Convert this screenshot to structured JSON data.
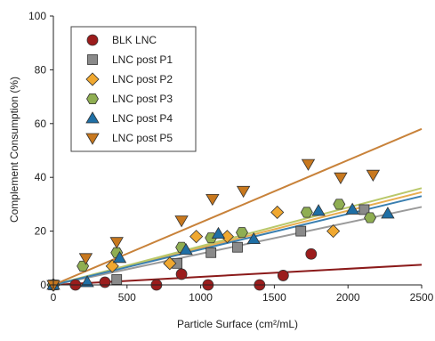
{
  "chart_data": {
    "type": "scatter",
    "xlabel": "Particle Surface (cm²/mL)",
    "ylabel": "Complement Consumption (%)",
    "xlim": [
      0,
      2500
    ],
    "ylim": [
      0,
      100
    ],
    "x_ticks": [
      "0",
      "500",
      "1000",
      "1500",
      "2000",
      "2500"
    ],
    "y_ticks": [
      "0",
      "20",
      "40",
      "60",
      "80",
      "100"
    ],
    "grid": false,
    "legend": "top-left",
    "series": [
      {
        "name": "BLK LNC",
        "marker": "circle",
        "color": "#9b1c1c",
        "fit_color": "#8b1a1a",
        "fit": [
          [
            0,
            0
          ],
          [
            2500,
            7.5
          ]
        ],
        "points": [
          {
            "x": 0,
            "y": 0
          },
          {
            "x": 150,
            "y": 0
          },
          {
            "x": 350,
            "y": 1
          },
          {
            "x": 700,
            "y": 0
          },
          {
            "x": 870,
            "y": 4
          },
          {
            "x": 1050,
            "y": 0
          },
          {
            "x": 1400,
            "y": 0
          },
          {
            "x": 1560,
            "y": 3.5
          },
          {
            "x": 1750,
            "y": 11.5
          }
        ]
      },
      {
        "name": "LNC post P1",
        "marker": "square",
        "color": "#8a8a8a",
        "fit_color": "#9a9a9a",
        "fit": [
          [
            0,
            0
          ],
          [
            2500,
            29
          ]
        ],
        "points": [
          {
            "x": 0,
            "y": 0
          },
          {
            "x": 430,
            "y": 2
          },
          {
            "x": 840,
            "y": 8
          },
          {
            "x": 1070,
            "y": 12
          },
          {
            "x": 1250,
            "y": 14
          },
          {
            "x": 1680,
            "y": 20
          },
          {
            "x": 2110,
            "y": 28
          }
        ]
      },
      {
        "name": "LNC post P2",
        "marker": "diamond",
        "color": "#f0a830",
        "fit_color": "#e8ad50",
        "fit": [
          [
            0,
            0
          ],
          [
            2500,
            34.5
          ]
        ],
        "points": [
          {
            "x": 0,
            "y": 0
          },
          {
            "x": 400,
            "y": 7
          },
          {
            "x": 790,
            "y": 8
          },
          {
            "x": 970,
            "y": 18
          },
          {
            "x": 1180,
            "y": 18
          },
          {
            "x": 1520,
            "y": 27
          },
          {
            "x": 1900,
            "y": 20
          }
        ]
      },
      {
        "name": "LNC post P3",
        "marker": "hexagon",
        "color": "#8fae52",
        "fit_color": "#b9c86a",
        "fit": [
          [
            0,
            0
          ],
          [
            2500,
            36
          ]
        ],
        "points": [
          {
            "x": 0,
            "y": 0
          },
          {
            "x": 200,
            "y": 7
          },
          {
            "x": 430,
            "y": 12
          },
          {
            "x": 870,
            "y": 14
          },
          {
            "x": 1070,
            "y": 17.5
          },
          {
            "x": 1280,
            "y": 19.5
          },
          {
            "x": 1720,
            "y": 27
          },
          {
            "x": 1940,
            "y": 30
          },
          {
            "x": 2150,
            "y": 25
          }
        ]
      },
      {
        "name": "LNC post P4",
        "marker": "triangle-up",
        "color": "#1f6fa5",
        "fit_color": "#3a7fb0",
        "fit": [
          [
            0,
            0
          ],
          [
            2500,
            33
          ]
        ],
        "points": [
          {
            "x": 0,
            "y": 0
          },
          {
            "x": 230,
            "y": 1
          },
          {
            "x": 450,
            "y": 10
          },
          {
            "x": 900,
            "y": 13
          },
          {
            "x": 1120,
            "y": 19
          },
          {
            "x": 1360,
            "y": 17
          },
          {
            "x": 1800,
            "y": 27.5
          },
          {
            "x": 2030,
            "y": 28
          },
          {
            "x": 2270,
            "y": 26.5
          }
        ]
      },
      {
        "name": "LNC post P5",
        "marker": "triangle-down",
        "color": "#c8781e",
        "fit_color": "#c8823a",
        "fit": [
          [
            0,
            0
          ],
          [
            2500,
            58
          ]
        ],
        "points": [
          {
            "x": 0,
            "y": 0
          },
          {
            "x": 220,
            "y": 10
          },
          {
            "x": 430,
            "y": 16
          },
          {
            "x": 870,
            "y": 24
          },
          {
            "x": 1080,
            "y": 32
          },
          {
            "x": 1290,
            "y": 35
          },
          {
            "x": 1730,
            "y": 45
          },
          {
            "x": 1950,
            "y": 40
          },
          {
            "x": 2170,
            "y": 41
          }
        ]
      }
    ]
  }
}
